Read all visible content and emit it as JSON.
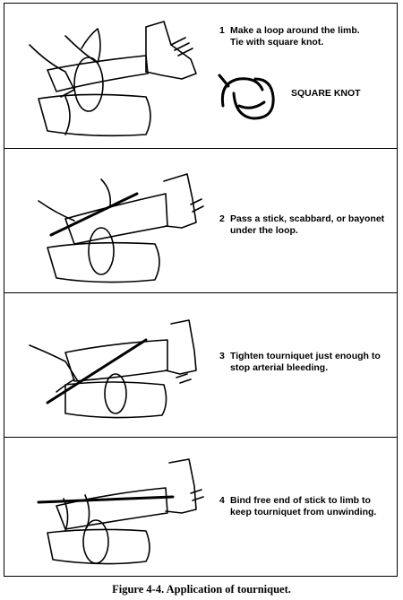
{
  "steps": [
    {
      "number": "1",
      "text": "Make a loop around the limb.\nTie with square knot."
    },
    {
      "number": "2",
      "text": "Pass a stick, scabbard, or bayonet\nunder the loop."
    },
    {
      "number": "3",
      "text": "Tighten tourniquet just enough to\nstop arterial bleeding."
    },
    {
      "number": "4",
      "text": "Bind free end of stick to limb to\nkeep tourniquet from unwinding."
    }
  ],
  "knot_label": "SQUARE KNOT",
  "caption": "Figure 4-4. Application of tourniquet."
}
